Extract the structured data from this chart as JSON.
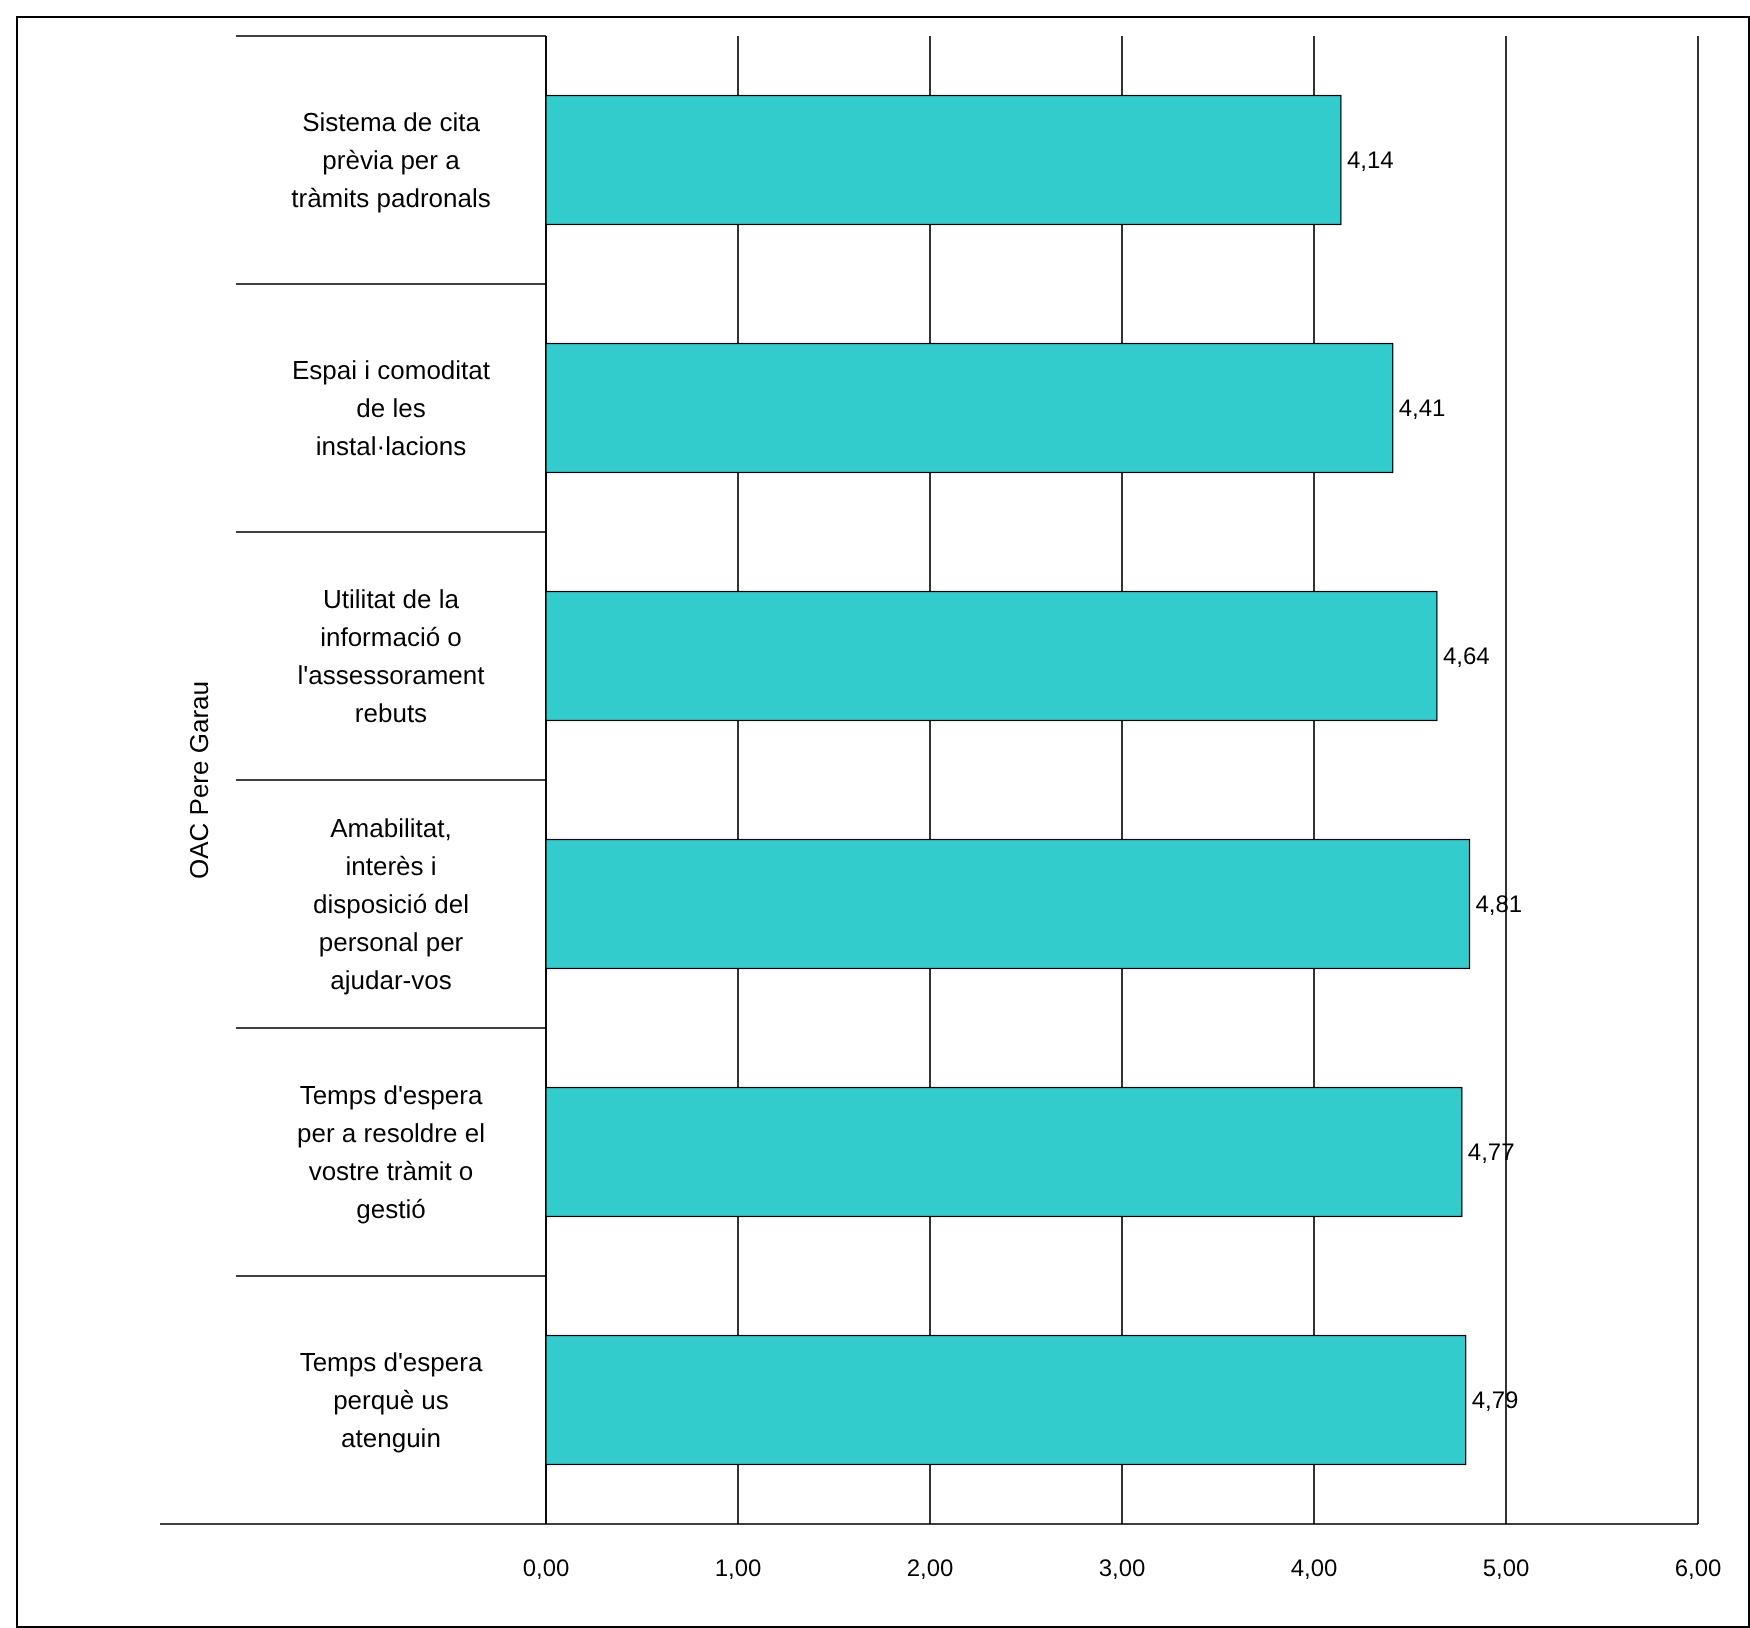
{
  "chart_data": {
    "type": "bar",
    "orientation": "horizontal",
    "ylabel": "OAC Pere Garau",
    "categories": [
      "Sistema de cita prèvia per a tràmits padronals",
      "Espai i comoditat de les instal·lacions",
      "Utilitat de la informació o l'assessorament rebuts",
      "Amabilitat, interès i disposició del personal per ajudar-vos",
      "Temps d'espera per a resoldre el vostre tràmit o gestió",
      "Temps d'espera perquè us atenguin"
    ],
    "values": [
      4.14,
      4.41,
      4.64,
      4.81,
      4.77,
      4.79
    ],
    "value_labels": [
      "4,14",
      "4,41",
      "4,64",
      "4,81",
      "4,77",
      "4,79"
    ],
    "color": "#33cccc",
    "xlim": [
      0,
      6
    ],
    "xticks": [
      {
        "value": 0,
        "label": "0,00"
      },
      {
        "value": 1,
        "label": "1,00"
      },
      {
        "value": 2,
        "label": "2,00"
      },
      {
        "value": 3,
        "label": "3,00"
      },
      {
        "value": 4,
        "label": "4,00"
      },
      {
        "value": 5,
        "label": "5,00"
      },
      {
        "value": 6,
        "label": "6,00"
      }
    ],
    "grid": "x"
  }
}
